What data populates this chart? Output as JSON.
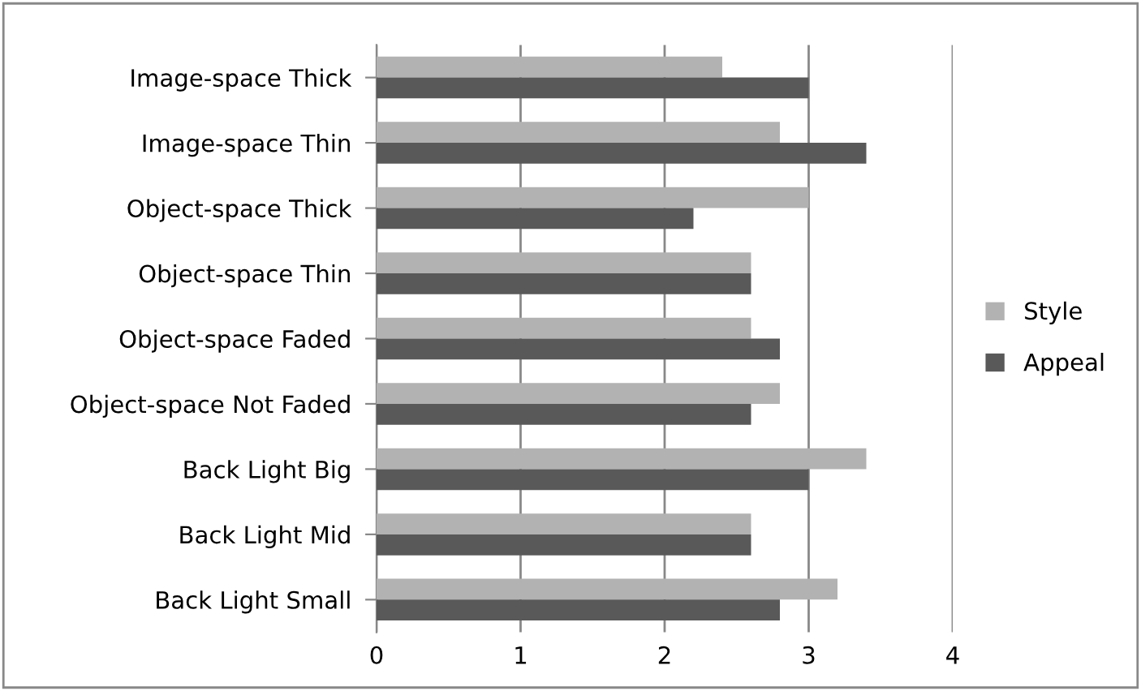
{
  "chart_data": {
    "type": "bar",
    "orientation": "horizontal",
    "categories": [
      "Image-space Thick",
      "Image-space Thin",
      "Object-space Thick",
      "Object-space Thin",
      "Object-space Faded",
      "Object-space Not Faded",
      "Back Light Big",
      "Back Light Mid",
      "Back Light Small"
    ],
    "series": [
      {
        "name": "Style",
        "color": "#b2b2b2",
        "values": [
          2.4,
          2.8,
          3.0,
          2.6,
          2.6,
          2.8,
          3.4,
          2.6,
          3.2
        ]
      },
      {
        "name": "Appeal",
        "color": "#595959",
        "values": [
          3.0,
          3.4,
          2.2,
          2.6,
          2.8,
          2.6,
          3.0,
          2.6,
          2.8
        ]
      }
    ],
    "xlim": [
      0,
      4
    ],
    "xticks": [
      0,
      1,
      2,
      3,
      4
    ],
    "grid": "x",
    "legend": "right"
  }
}
